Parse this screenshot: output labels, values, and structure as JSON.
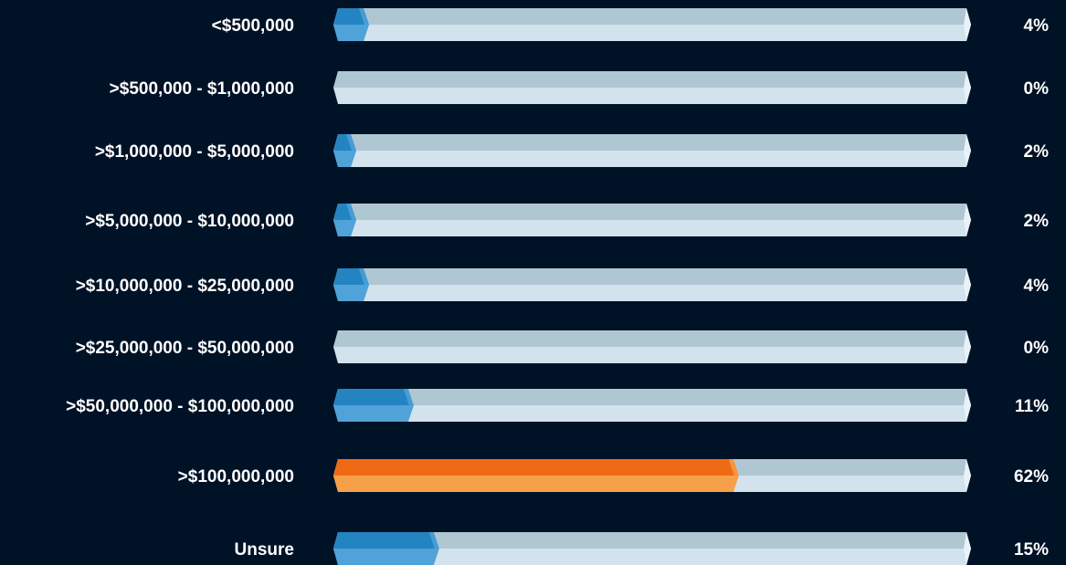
{
  "chart_data": {
    "type": "bar",
    "categories": [
      "<$500,000",
      ">$500,000 - $1,000,000",
      ">$1,000,000 - $5,000,000",
      ">$5,000,000 - $10,000,000",
      ">$10,000,000 - $25,000,000",
      ">$25,000,000 - $50,000,000",
      ">$50,000,000 - $100,000,000",
      ">$100,000,000",
      "Unsure"
    ],
    "values": [
      4,
      0,
      2,
      2,
      4,
      0,
      11,
      62,
      15
    ],
    "value_labels": [
      "4%",
      "0%",
      "2%",
      "2%",
      "4%",
      "0%",
      "11%",
      "62%",
      "15%"
    ],
    "colors": [
      "#2484c1",
      "#2484c1",
      "#2484c1",
      "#2484c1",
      "#2484c1",
      "#2484c1",
      "#2484c1",
      "#f06a15",
      "#2484c1"
    ],
    "xlim": [
      0,
      100
    ]
  }
}
